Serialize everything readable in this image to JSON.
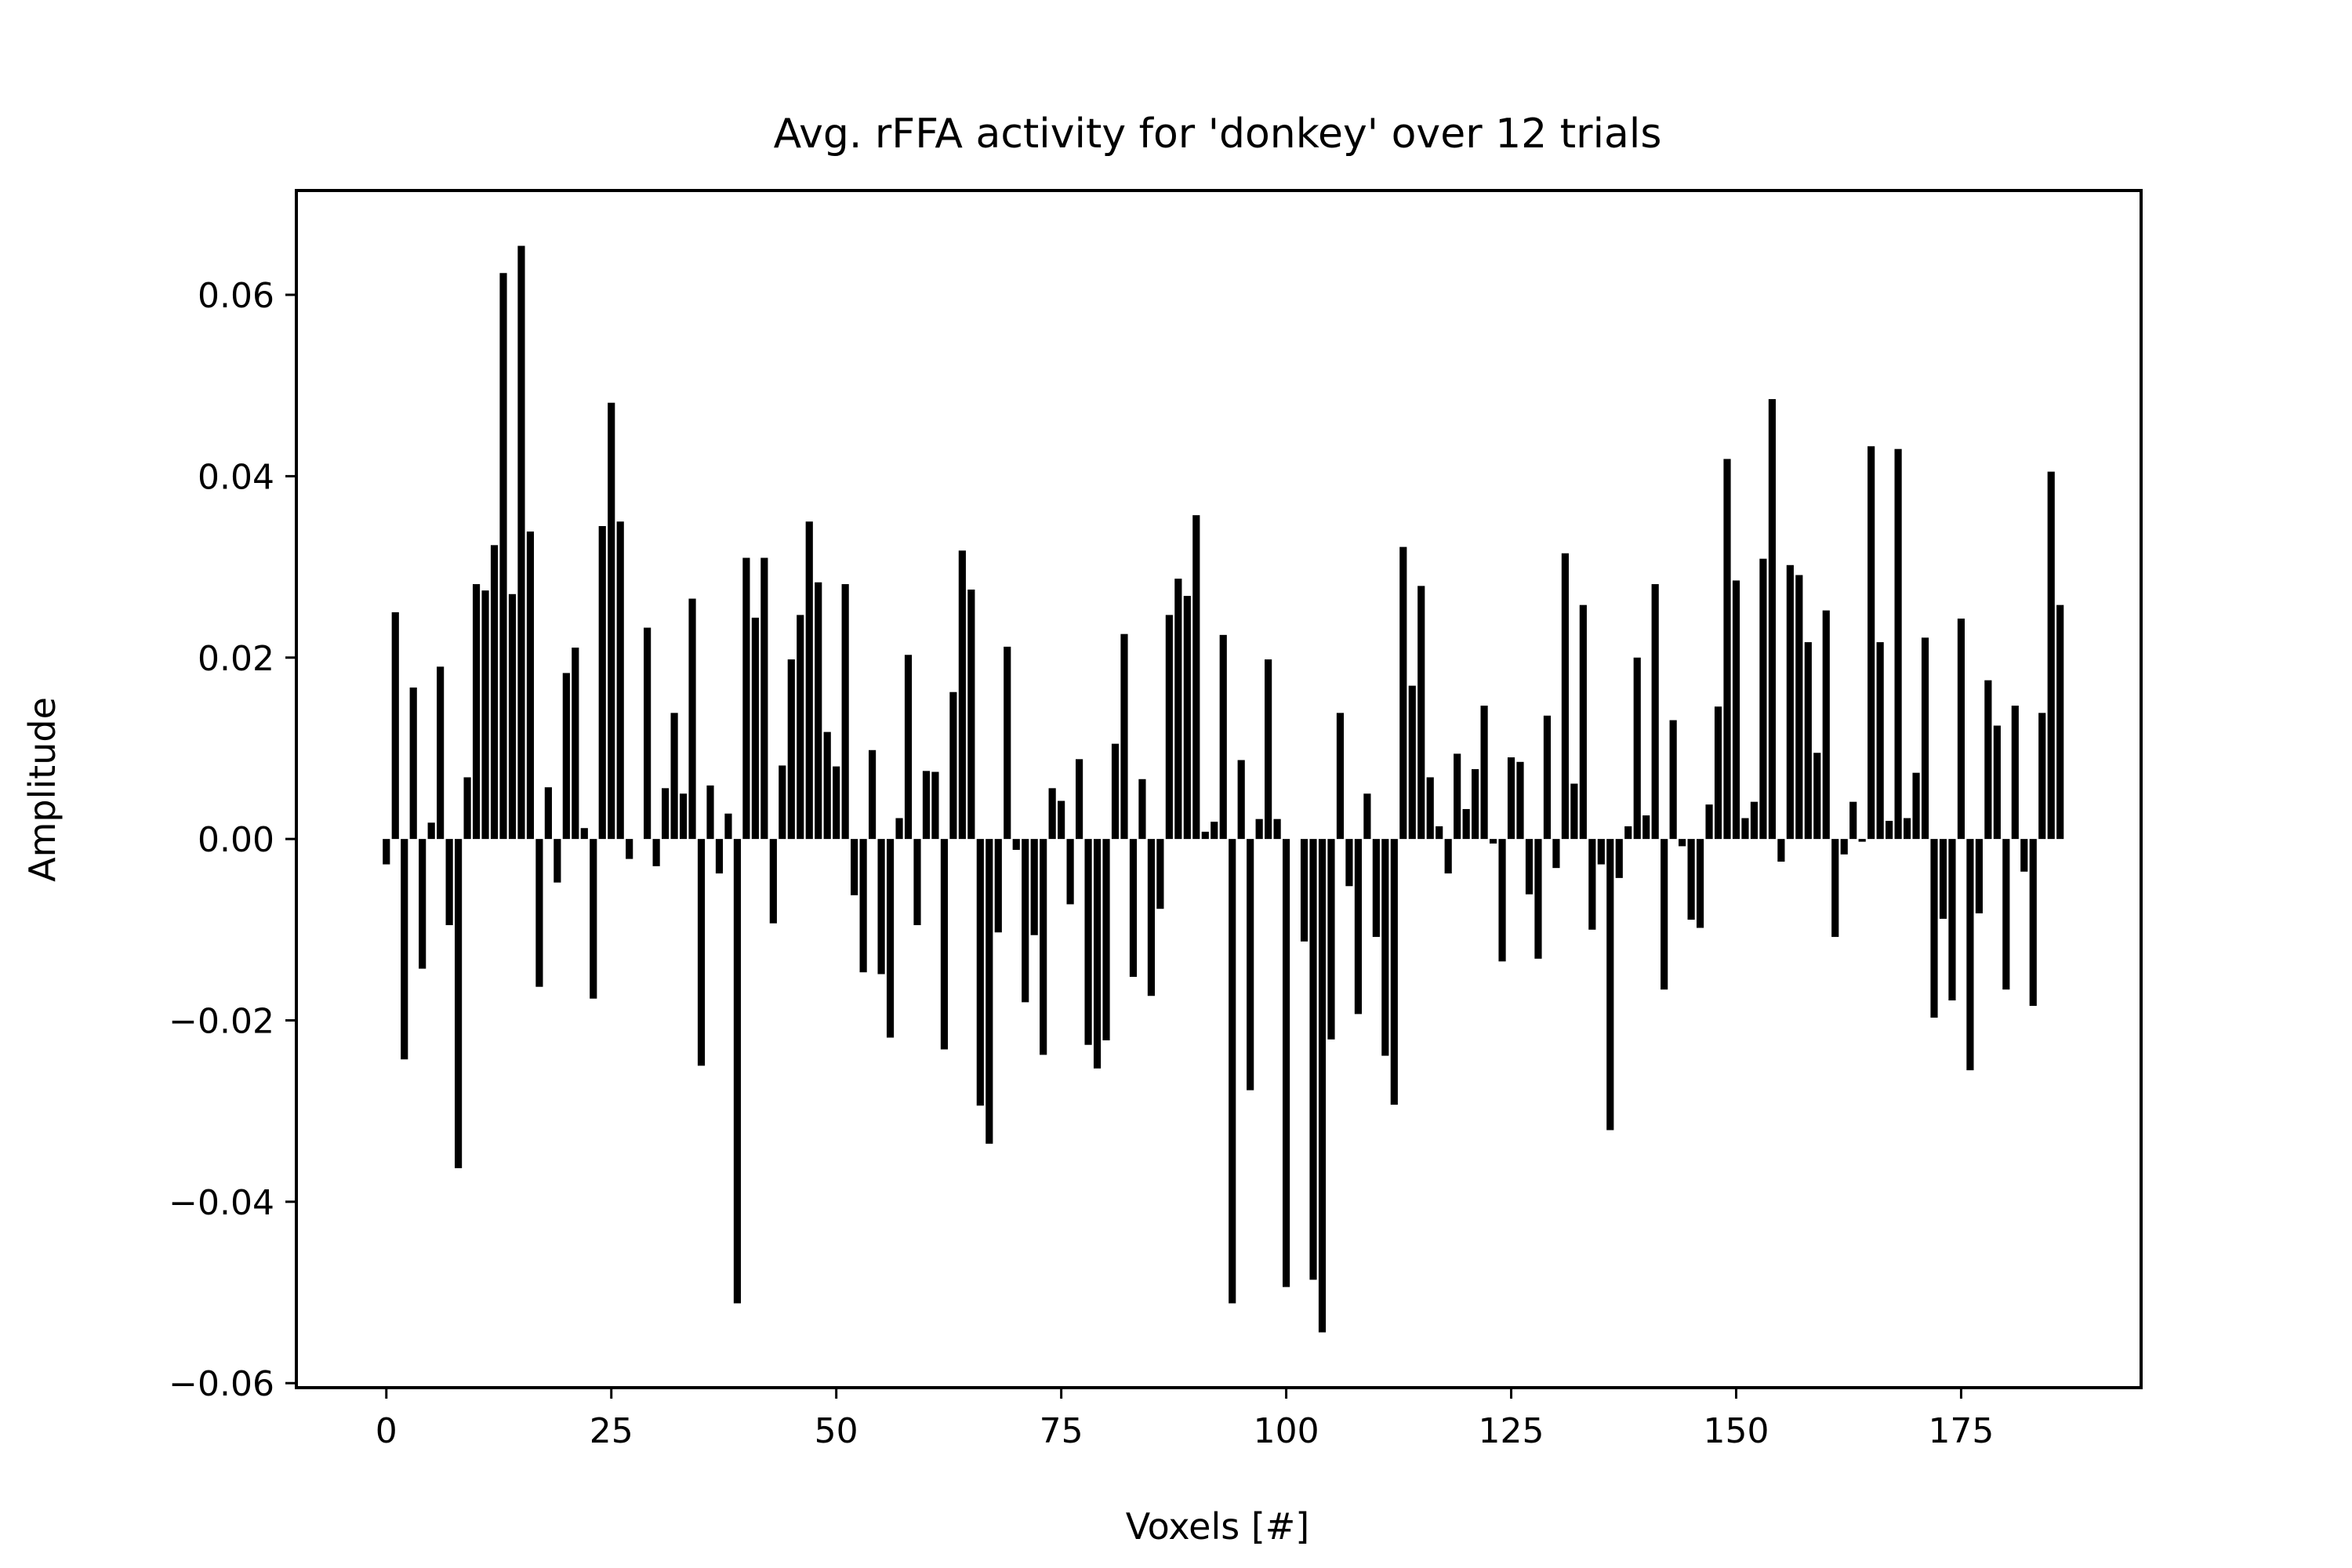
{
  "chart_data": {
    "type": "bar",
    "title": "Avg. rFFA activity for 'donkey' over 12 trials",
    "xlabel": "Voxels [#]",
    "ylabel": "Amplitude",
    "xlim": [
      -10,
      195
    ],
    "ylim": [
      -0.0605,
      0.0715
    ],
    "xticks": [
      0,
      25,
      50,
      75,
      100,
      125,
      150,
      175
    ],
    "xtick_labels": [
      "0",
      "25",
      "50",
      "75",
      "100",
      "125",
      "150",
      "175"
    ],
    "yticks": [
      -0.06,
      -0.04,
      -0.02,
      0.0,
      0.02,
      0.04,
      0.06
    ],
    "ytick_labels": [
      "−0.06",
      "−0.04",
      "−0.02",
      "0.00",
      "0.02",
      "0.04",
      "0.06"
    ],
    "bar_color": "#000000",
    "grid": false,
    "legend": "none",
    "x": [
      0,
      1,
      2,
      3,
      4,
      5,
      6,
      7,
      8,
      9,
      10,
      11,
      12,
      13,
      14,
      15,
      16,
      17,
      18,
      19,
      20,
      21,
      22,
      23,
      24,
      25,
      26,
      27,
      28,
      29,
      30,
      31,
      32,
      33,
      34,
      35,
      36,
      37,
      38,
      39,
      40,
      41,
      42,
      43,
      44,
      45,
      46,
      47,
      48,
      49,
      50,
      51,
      52,
      53,
      54,
      55,
      56,
      57,
      58,
      59,
      60,
      61,
      62,
      63,
      64,
      65,
      66,
      67,
      68,
      69,
      70,
      71,
      72,
      73,
      74,
      75,
      76,
      77,
      78,
      79,
      80,
      81,
      82,
      83,
      84,
      85,
      86,
      87,
      88,
      89,
      90,
      91,
      92,
      93,
      94,
      95,
      96,
      97,
      98,
      99,
      100,
      101,
      102,
      103,
      104,
      105,
      106,
      107,
      108,
      109,
      110,
      111,
      112,
      113,
      114,
      115,
      116,
      117,
      118,
      119,
      120,
      121,
      122,
      123,
      124,
      125,
      126,
      127,
      128,
      129,
      130,
      131,
      132,
      133,
      134,
      135,
      136,
      137,
      138,
      139,
      140,
      141,
      142,
      143,
      144,
      145,
      146,
      147,
      148,
      149,
      150,
      151,
      152,
      153,
      154,
      155,
      156,
      157,
      158,
      159,
      160,
      161,
      162,
      163,
      164,
      165,
      166,
      167,
      168,
      169,
      170,
      171,
      172,
      173,
      174,
      175,
      176,
      177,
      178,
      179,
      180,
      181,
      182,
      183,
      184,
      185,
      186
    ],
    "values": [
      -0.0028,
      0.025,
      -0.0243,
      0.0167,
      -0.0143,
      0.0018,
      0.019,
      -0.0095,
      -0.0363,
      0.0068,
      0.0281,
      0.0274,
      0.0324,
      0.0624,
      0.027,
      0.0654,
      0.0339,
      -0.0163,
      0.0057,
      -0.0048,
      0.0183,
      0.0211,
      0.0012,
      -0.0176,
      0.0345,
      0.0481,
      0.035,
      -0.0022,
      0,
      0.0233,
      -0.003,
      0.0056,
      0.0139,
      0.005,
      0.0265,
      -0.025,
      0.0059,
      -0.0038,
      0.0028,
      -0.0512,
      0.031,
      0.0244,
      0.031,
      -0.0093,
      0.0081,
      0.0198,
      0.0247,
      0.035,
      0.0283,
      0.0118,
      0.008,
      0.0281,
      -0.0062,
      -0.0147,
      0.0098,
      -0.0149,
      -0.0219,
      0.0023,
      0.0203,
      -0.0095,
      0.0075,
      0.0074,
      -0.0232,
      0.0162,
      0.0318,
      0.0275,
      -0.0294,
      -0.0336,
      -0.0103,
      0.0212,
      -0.0012,
      -0.018,
      -0.0106,
      -0.0238,
      0.0056,
      0.0042,
      -0.0072,
      0.0088,
      -0.0227,
      -0.0253,
      -0.0222,
      0.0105,
      0.0226,
      -0.0152,
      0.0066,
      -0.0173,
      -0.0077,
      0.0247,
      0.0287,
      0.0268,
      0.0357,
      0.0008,
      0.0019,
      0.0225,
      -0.0512,
      0.0087,
      -0.0277,
      0.0022,
      0.0198,
      0.0022,
      -0.0494,
      0,
      -0.0113,
      -0.0486,
      -0.0544,
      -0.0221,
      0.0139,
      -0.0052,
      -0.0193,
      0.005,
      -0.0108,
      -0.0239,
      -0.0293,
      0.0322,
      0.0169,
      0.0279,
      0.0068,
      0.0014,
      -0.0038,
      0.0094,
      0.0033,
      0.0077,
      0.0147,
      -0.0005,
      -0.0135,
      0.009,
      0.0085,
      -0.0061,
      -0.0132,
      0.0136,
      -0.0032,
      0.0315,
      0.0061,
      0.0258,
      -0.01,
      -0.0028,
      -0.0321,
      -0.0043,
      0.0014,
      0.02,
      0.0026,
      0.0281,
      -0.0166,
      0.0131,
      -0.0008,
      -0.0089,
      -0.0098,
      0.0038,
      0.0146,
      0.0419,
      0.0285,
      0.0023,
      0.0041,
      0.0309,
      0.0485,
      -0.0025,
      0.0302,
      0.0291,
      0.0217,
      0.0095,
      0.0252,
      -0.0108,
      -0.0017,
      0.0041,
      -0.0003,
      0.0433,
      0.0217,
      0.002,
      0.043,
      0.0023,
      0.0073,
      0.0222,
      -0.0197,
      -0.0088,
      -0.0178,
      0.0243,
      -0.0255,
      -0.0082,
      0.0175,
      0.0125,
      -0.0166,
      0.0147,
      -0.0036,
      -0.0184,
      0.0139,
      0.0405,
      0.0258
    ]
  }
}
